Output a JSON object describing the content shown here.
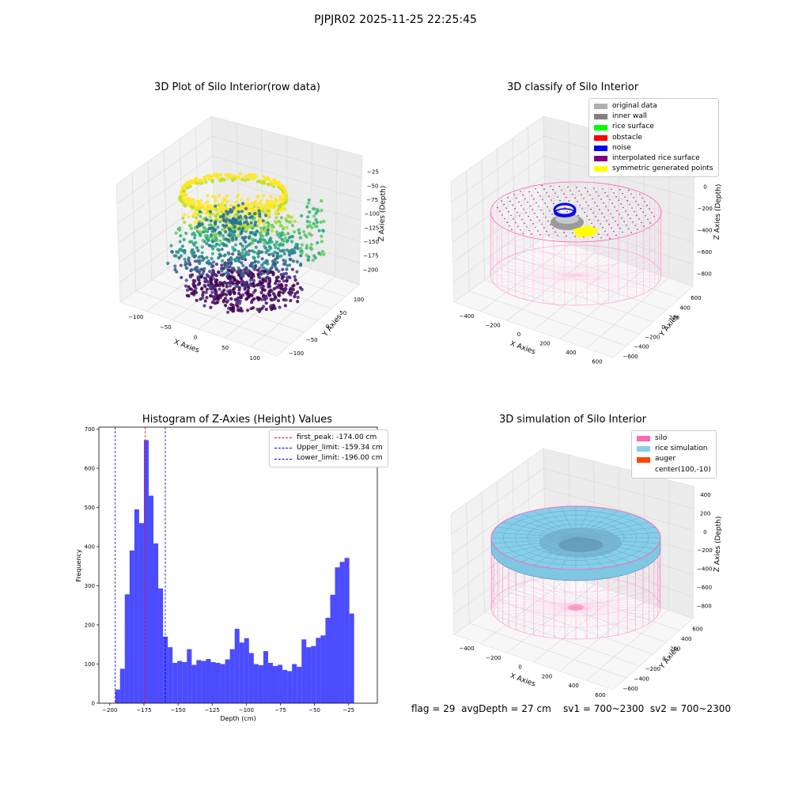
{
  "figure": {
    "suptitle": "PJPJR02 2025-11-25 22:25:45",
    "footer": "flag = 29  avgDepth = 27 cm    sv1 = 700~2300  sv2 = 700~2300"
  },
  "chart_data": [
    {
      "type": "scatter3d",
      "title": "3D Plot of Silo Interior(row data)",
      "xlabel": "X Axies",
      "ylabel": "Y Axies",
      "zlabel": "Z Axies (Depth)",
      "x_ticks": [
        "−100",
        "−50",
        "0",
        "50",
        "100"
      ],
      "y_ticks": [
        "−100",
        "−50",
        "0",
        "50",
        "100"
      ],
      "z_ticks": [
        "−200",
        "−175",
        "−150",
        "−125",
        "−100",
        "−75",
        "−50",
        "−25"
      ],
      "colormap": "viridis",
      "zlim": [
        -205,
        -15
      ]
    },
    {
      "type": "scatter3d",
      "title": "3D classify of Silo Interior",
      "xlabel": "X Axies",
      "ylabel": "Y Axies",
      "zlabel": "Z Axies (Depth)",
      "x_ticks": [
        "−400",
        "−200",
        "0",
        "200",
        "400",
        "600"
      ],
      "y_ticks": [
        "−600",
        "−400",
        "−200",
        "0",
        "200",
        "400",
        "600"
      ],
      "z_ticks": [
        "−800",
        "−600",
        "−400",
        "−200",
        "0",
        "200"
      ],
      "legend": [
        {
          "label": "original data",
          "color": "#b0b0b0"
        },
        {
          "label": "inner wall",
          "color": "#808080"
        },
        {
          "label": "rice surface",
          "color": "#00ff00"
        },
        {
          "label": "obstacle",
          "color": "#ff0000"
        },
        {
          "label": "noise",
          "color": "#0000ff"
        },
        {
          "label": "interpolated rice surface",
          "color": "#800080"
        },
        {
          "label": "symmetric generated points",
          "color": "#ffff00"
        }
      ]
    },
    {
      "type": "bar",
      "title": "Histogram of Z-Axies (Height) Values",
      "xlabel": "Depth (cm)",
      "ylabel": "Frequency",
      "xlim": [
        -208,
        -4
      ],
      "ylim": [
        0,
        705
      ],
      "x_ticks": [
        -200,
        -175,
        -150,
        -125,
        -100,
        -75,
        -50,
        -25
      ],
      "y_ticks": [
        0,
        100,
        200,
        300,
        400,
        500,
        600,
        700
      ],
      "bar_color": "#0000ff",
      "bin_start": -196,
      "bin_width": 3.5,
      "values": [
        35,
        88,
        278,
        390,
        495,
        460,
        672,
        530,
        408,
        293,
        170,
        143,
        103,
        108,
        105,
        138,
        98,
        110,
        108,
        113,
        105,
        103,
        100,
        112,
        138,
        190,
        155,
        166,
        128,
        100,
        97,
        133,
        103,
        95,
        98,
        85,
        82,
        100,
        93,
        163,
        143,
        146,
        167,
        173,
        218,
        277,
        347,
        361,
        371,
        229
      ],
      "vlines": [
        {
          "name": "first_peak: -174.00 cm",
          "x": -174.0,
          "color": "#ff0000"
        },
        {
          "name": "Upper_limit: -159.34 cm",
          "x": -159.34,
          "color": "#0000cc"
        },
        {
          "name": "Lower_limit: -196.00 cm",
          "x": -196.0,
          "color": "#0000cc"
        }
      ]
    },
    {
      "type": "surface3d",
      "title": "3D simulation of Silo Interior",
      "xlabel": "X Axies",
      "ylabel": "Y Axies",
      "zlabel": "Z Axies (Depth)",
      "x_ticks": [
        "−400",
        "−200",
        "0",
        "200",
        "400",
        "600"
      ],
      "y_ticks": [
        "−600",
        "−400",
        "−200",
        "0",
        "200",
        "400",
        "600"
      ],
      "z_ticks": [
        "−800",
        "−600",
        "−400",
        "−200",
        "0",
        "200",
        "400"
      ],
      "legend": [
        {
          "label": "silo",
          "color": "#ff69b4"
        },
        {
          "label": "rice simulation",
          "color": "#87ceeb"
        },
        {
          "label": "auger",
          "color": "#ff4500"
        },
        {
          "label": "center(100,-10)",
          "color": ""
        }
      ]
    }
  ]
}
